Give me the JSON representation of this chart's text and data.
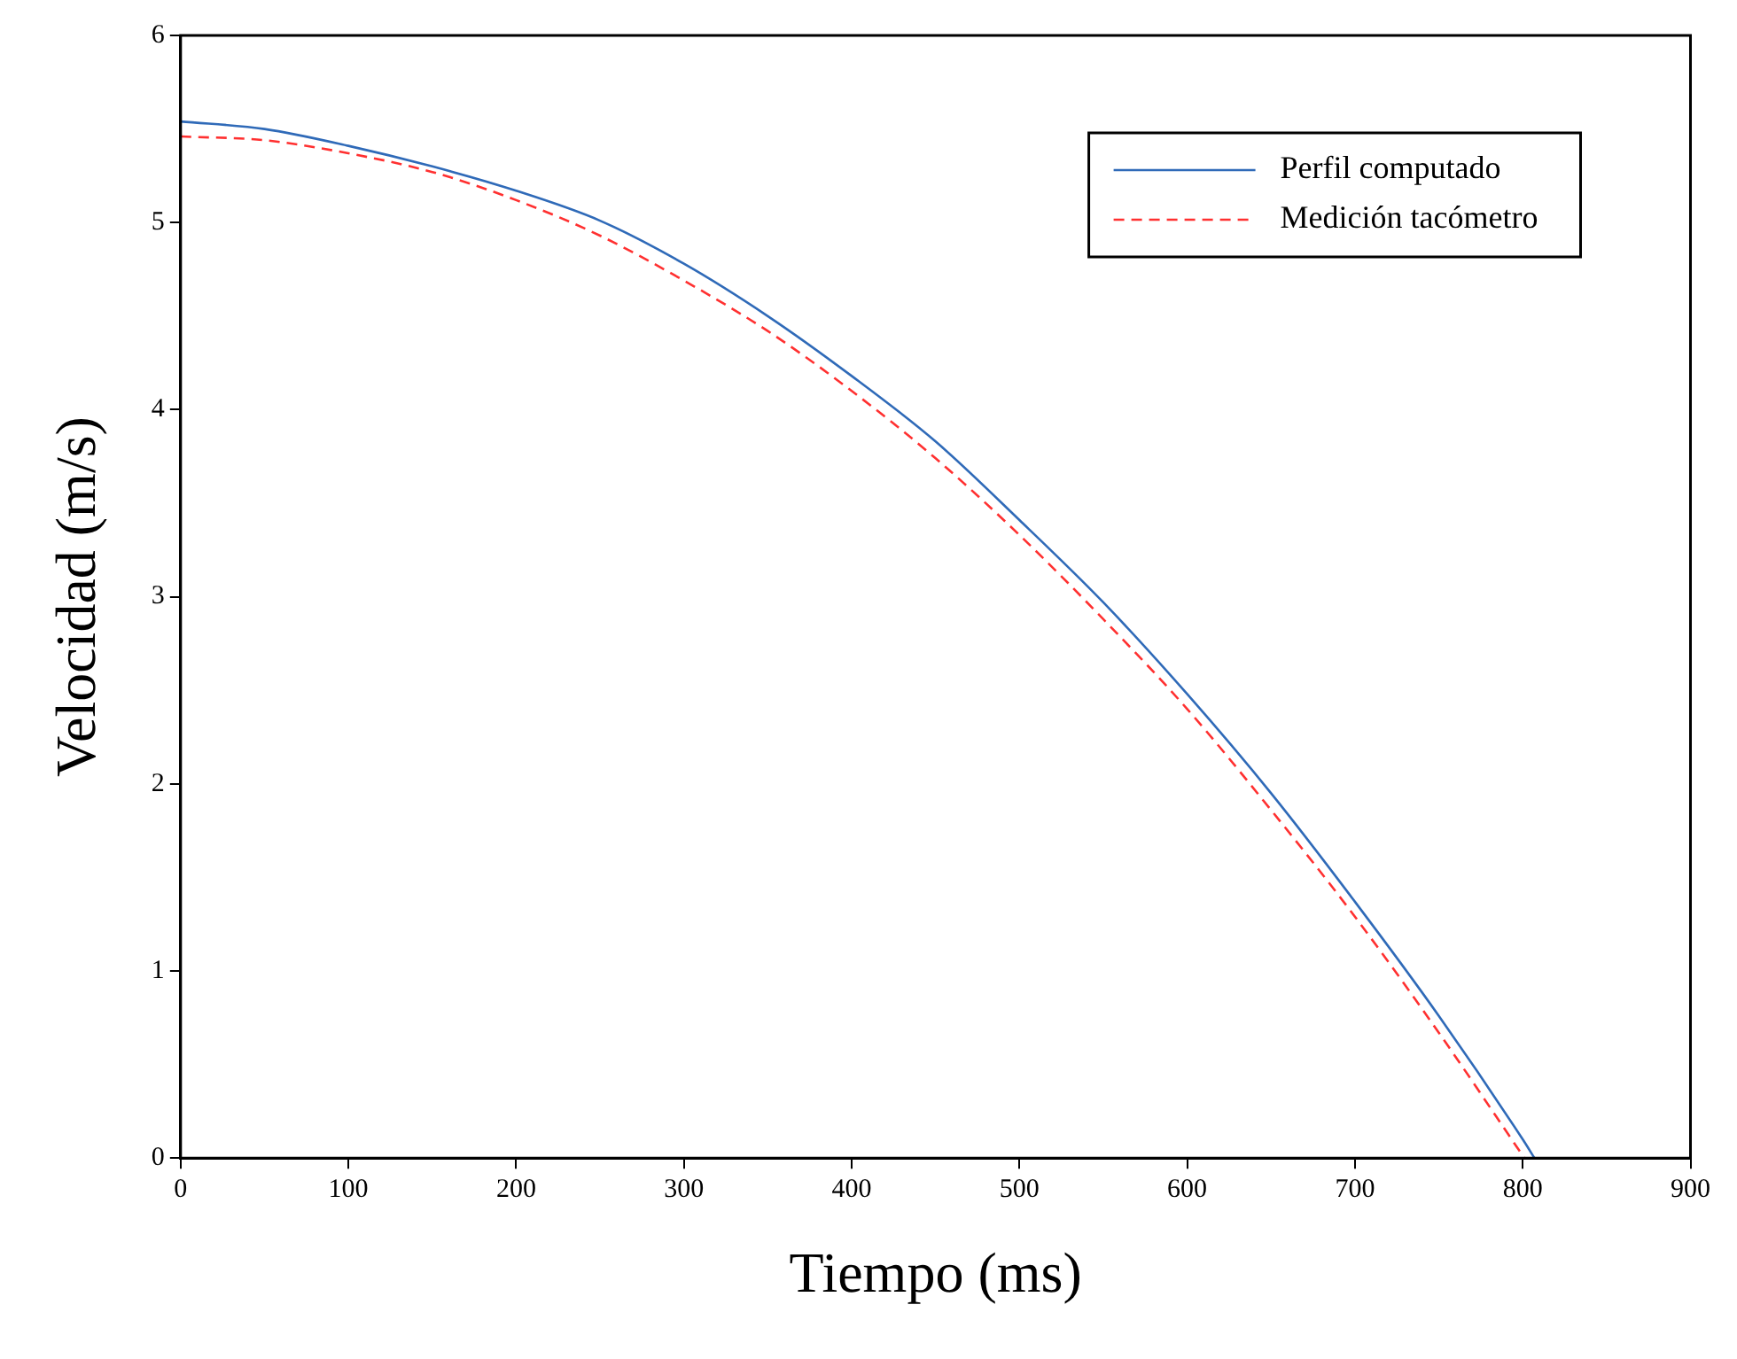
{
  "chart_data": {
    "type": "line",
    "xlabel": "Tiempo (ms)",
    "ylabel": "Velocidad (m/s)",
    "xlim": [
      0,
      900
    ],
    "xticks": [
      0,
      100,
      200,
      300,
      400,
      500,
      600,
      700,
      800,
      900
    ],
    "ylim": [
      0,
      6
    ],
    "yticks": [
      0,
      1,
      2,
      3,
      4,
      5,
      6
    ],
    "grid": false,
    "legend": "top right",
    "marker": "none",
    "series": [
      {
        "name": "Perfil computado",
        "color": "#2f6ab8",
        "line_style": "solid",
        "x": [
          0,
          50,
          100,
          150,
          200,
          250,
          300,
          350,
          400,
          450,
          500,
          550,
          600,
          650,
          700,
          750,
          800,
          807
        ],
        "values": [
          5.54,
          5.5,
          5.41,
          5.3,
          5.17,
          5.01,
          4.78,
          4.5,
          4.18,
          3.83,
          3.41,
          2.97,
          2.48,
          1.95,
          1.37,
          0.76,
          0.1,
          0
        ]
      },
      {
        "name": "Medición tacómetro",
        "color": "#ff3030",
        "line_style": "dashed",
        "x": [
          0,
          50,
          100,
          150,
          200,
          250,
          300,
          350,
          400,
          450,
          500,
          550,
          600,
          650,
          700,
          750,
          801
        ],
        "values": [
          5.46,
          5.44,
          5.37,
          5.27,
          5.12,
          4.93,
          4.69,
          4.42,
          4.1,
          3.74,
          3.33,
          2.88,
          2.4,
          1.86,
          1.29,
          0.67,
          0
        ]
      }
    ]
  }
}
